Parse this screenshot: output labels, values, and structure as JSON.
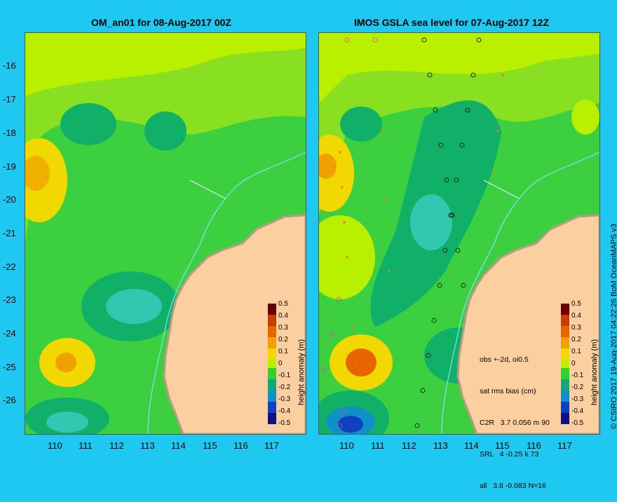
{
  "left_panel": {
    "title": "OM_an01 for 08-Aug-2017 00Z"
  },
  "right_panel": {
    "title": "IMOS GSLA sea level  for 07-Aug-2017 12Z",
    "stats": {
      "line1": "obs +-2d, oi0.5",
      "line2": "sat rms bias (cm)",
      "line3": "C2R   3.7 0.056 m 90",
      "line4": "SRL   4 -0.25 k 73",
      "line5": "all   3.8 -0.083 N=16"
    }
  },
  "y_ticks": [
    "-16",
    "-17",
    "-18",
    "-19",
    "-20",
    "-21",
    "-22",
    "-23",
    "-24",
    "-25",
    "-26"
  ],
  "x_ticks": [
    "110",
    "111",
    "112",
    "113",
    "114",
    "115",
    "116",
    "117"
  ],
  "colorbar": {
    "title": "height anomaly (m)",
    "ticks": [
      "0.5",
      "0.4",
      "0.3",
      "0.2",
      "0.1",
      "0",
      "-0.1",
      "-0.2",
      "-0.3",
      "-0.4",
      "-0.5"
    ],
    "colors": [
      "#6a0000",
      "#c83c00",
      "#e86400",
      "#f0a000",
      "#f0d800",
      "#b8f000",
      "#30d030",
      "#10a878",
      "#1090c8",
      "#1040c0",
      "#101080"
    ]
  },
  "credit": "© CSIRO 2017  19-Aug-2017 04:22:26 BoM OceanMAPS v3",
  "colors": {
    "background": "#1ec8f0",
    "land": "#fccfa0",
    "coast": "#b99c82"
  }
}
